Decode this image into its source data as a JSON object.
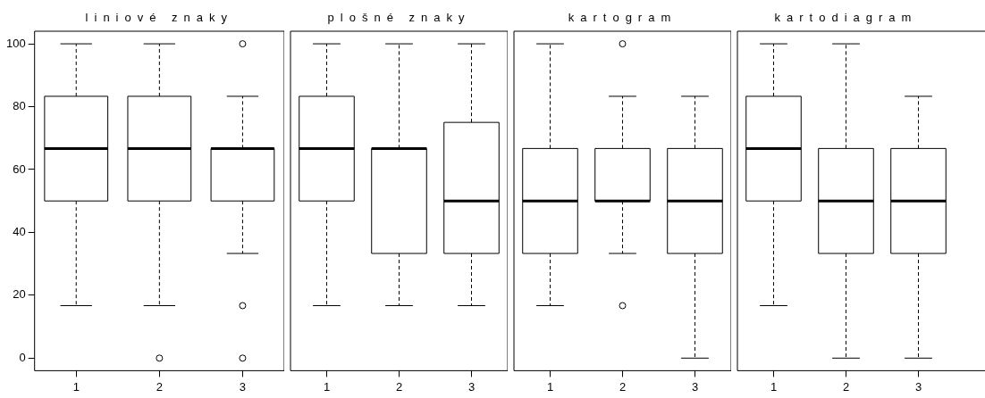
{
  "chart_data": [
    {
      "type": "box",
      "title": "liniové znaky",
      "categories": [
        "1",
        "2",
        "3"
      ],
      "ylim": [
        -4,
        104
      ],
      "yticks": [
        0,
        20,
        40,
        60,
        80,
        100
      ],
      "boxes": [
        {
          "low": 16.7,
          "q1": 50,
          "median": 66.7,
          "q3": 83.3,
          "high": 100
        },
        {
          "low": 16.7,
          "q1": 50,
          "median": 66.7,
          "q3": 83.3,
          "high": 100,
          "outliers": [
            0
          ]
        },
        {
          "low": 33.3,
          "q1": 50,
          "median": 66.7,
          "q3": 66.7,
          "high": 83.3,
          "outliers": [
            100,
            16.7,
            0
          ]
        }
      ]
    },
    {
      "type": "box",
      "title": "plošné znaky",
      "categories": [
        "1",
        "2",
        "3"
      ],
      "ylim": [
        -4,
        104
      ],
      "yticks": [
        0,
        20,
        40,
        60,
        80,
        100
      ],
      "tick_labels": "x",
      "boxes": [
        {
          "low": 16.7,
          "q1": 50,
          "median": 66.7,
          "q3": 83.3,
          "high": 100
        },
        {
          "low": 16.7,
          "q1": 33.3,
          "median": 66.7,
          "q3": 66.7,
          "high": 100
        },
        {
          "low": 16.7,
          "q1": 33.3,
          "median": 50,
          "q3": 75,
          "high": 100
        }
      ]
    },
    {
      "type": "box",
      "title": "kartogram",
      "categories": [
        "1",
        "2",
        "3"
      ],
      "ylim": [
        -4,
        104
      ],
      "yticks": [
        0,
        20,
        40,
        60,
        80,
        100
      ],
      "tick_labels": "x",
      "boxes": [
        {
          "low": 16.7,
          "q1": 33.3,
          "median": 50,
          "q3": 66.7,
          "high": 100
        },
        {
          "low": 33.3,
          "q1": 50,
          "median": 50,
          "q3": 66.7,
          "high": 83.3,
          "outliers": [
            100,
            16.7
          ]
        },
        {
          "low": 0,
          "q1": 33.3,
          "median": 50,
          "q3": 66.7,
          "high": 83.3
        }
      ]
    },
    {
      "type": "box",
      "title": "kartodiagram",
      "categories": [
        "1",
        "2",
        "3"
      ],
      "ylim": [
        -4,
        104
      ],
      "yticks": [
        0,
        20,
        40,
        60,
        80,
        100
      ],
      "tick_labels": "x",
      "boxes": [
        {
          "low": 16.7,
          "q1": 50,
          "median": 66.7,
          "q3": 83.3,
          "high": 100
        },
        {
          "low": 0,
          "q1": 33.3,
          "median": 50,
          "q3": 66.7,
          "high": 100
        },
        {
          "low": 0,
          "q1": 33.3,
          "median": 50,
          "q3": 66.7,
          "high": 83.3
        }
      ]
    }
  ]
}
